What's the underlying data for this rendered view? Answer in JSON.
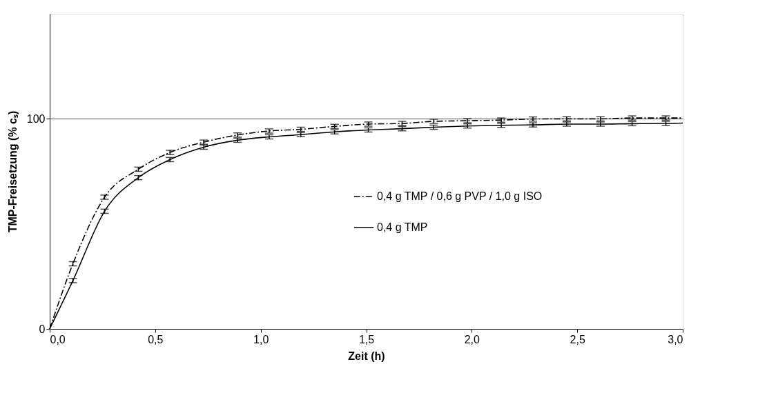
{
  "chart_data": {
    "type": "line",
    "xlabel": "Zeit (h)",
    "ylabel": "TMP-Freisetzung (% cₛ)",
    "x": [
      0,
      0.11,
      0.26,
      0.42,
      0.57,
      0.73,
      0.89,
      1.04,
      1.19,
      1.35,
      1.51,
      1.67,
      1.82,
      1.98,
      2.14,
      2.29,
      2.45,
      2.61,
      2.76,
      2.92,
      3.0
    ],
    "series": [
      {
        "name": "0,4 g TMP / 0,6 g PVP / 1,0 g ISO",
        "color": "#000000",
        "line_style": "dashed",
        "values": [
          0,
          31,
          62.7,
          76,
          84,
          88.9,
          92.3,
          94.2,
          95,
          96.4,
          97.5,
          97.8,
          98.8,
          99.1,
          99.4,
          99.9,
          100,
          100,
          100.4,
          100.4,
          100.4
        ],
        "errors": [
          null,
          1,
          1,
          1,
          1,
          1,
          1,
          1,
          1,
          1,
          1,
          1,
          1,
          1,
          1,
          1,
          1,
          1,
          1,
          1,
          null
        ]
      },
      {
        "name": "0,4 g TMP",
        "color": "#000000",
        "line_style": "solid",
        "values": [
          0,
          23,
          56,
          72,
          80.6,
          86.5,
          89.8,
          91.4,
          92.5,
          93.8,
          94.7,
          95.3,
          96,
          96.6,
          96.9,
          97.1,
          97.5,
          97.5,
          97.7,
          97.8,
          98
        ],
        "errors": [
          null,
          1,
          1,
          1,
          1,
          1,
          1,
          1,
          1,
          1,
          1,
          1,
          1,
          1,
          1,
          1,
          1,
          1,
          1,
          1,
          null
        ]
      }
    ],
    "xlim": [
      0,
      3.0
    ],
    "ylim": [
      0,
      150
    ],
    "xticks": [
      {
        "value": 0,
        "label": "0,0"
      },
      {
        "value": 0.5,
        "label": "0,5"
      },
      {
        "value": 1.0,
        "label": "1,0"
      },
      {
        "value": 1.5,
        "label": "1,5"
      },
      {
        "value": 2.0,
        "label": "2,0"
      },
      {
        "value": 2.5,
        "label": "2,5"
      },
      {
        "value": 3.0,
        "label": "3,0"
      }
    ],
    "yticks": [
      0,
      100
    ],
    "grid": "y",
    "legend": "center",
    "marker": "none"
  }
}
